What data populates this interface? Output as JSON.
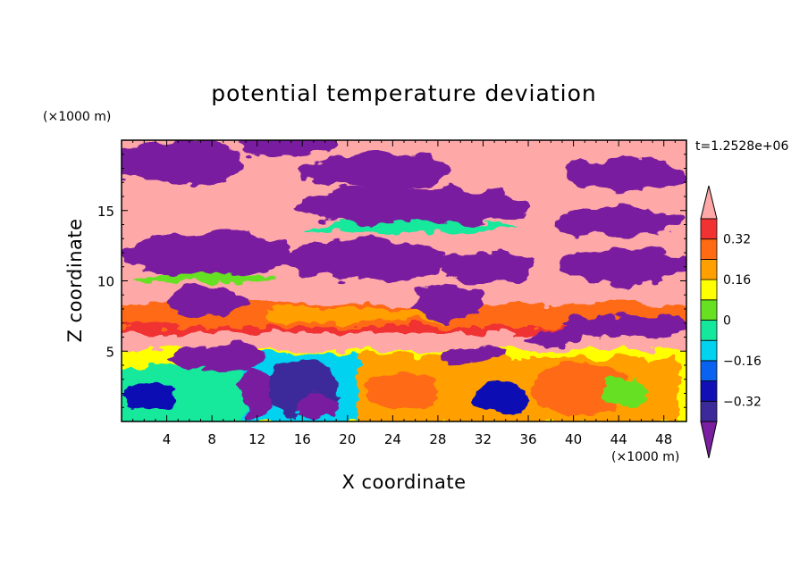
{
  "chart_data": {
    "type": "heatmap",
    "title": "potential temperature deviation",
    "xlabel": "X coordinate",
    "ylabel": "Z coordinate",
    "x_unit": "(×1000 m)",
    "y_unit": "(×1000 m)",
    "time_label": "t=1.2528e+06",
    "xlim": [
      0,
      50
    ],
    "ylim": [
      0,
      20
    ],
    "x_ticks": [
      4,
      8,
      12,
      16,
      20,
      24,
      28,
      32,
      36,
      40,
      44,
      48
    ],
    "y_ticks": [
      5,
      10,
      15
    ],
    "colorbar": {
      "levels": [
        -0.4,
        -0.32,
        -0.24,
        -0.16,
        -0.08,
        0,
        0.08,
        0.16,
        0.24,
        0.32,
        0.4
      ],
      "labels": [
        "0.32",
        "0.16",
        "0",
        "−0.16",
        "−0.32"
      ],
      "label_values": [
        0.32,
        0.16,
        0,
        -0.16,
        -0.32
      ],
      "colors": [
        "#7a1fa0",
        "#3c2a9a",
        "#1010b4",
        "#0a62f0",
        "#00d2f0",
        "#14e89c",
        "#66e020",
        "#ffff00",
        "#ffa000",
        "#ff6a12",
        "#f03232",
        "#ffa8a8"
      ],
      "extend": "both"
    }
  }
}
